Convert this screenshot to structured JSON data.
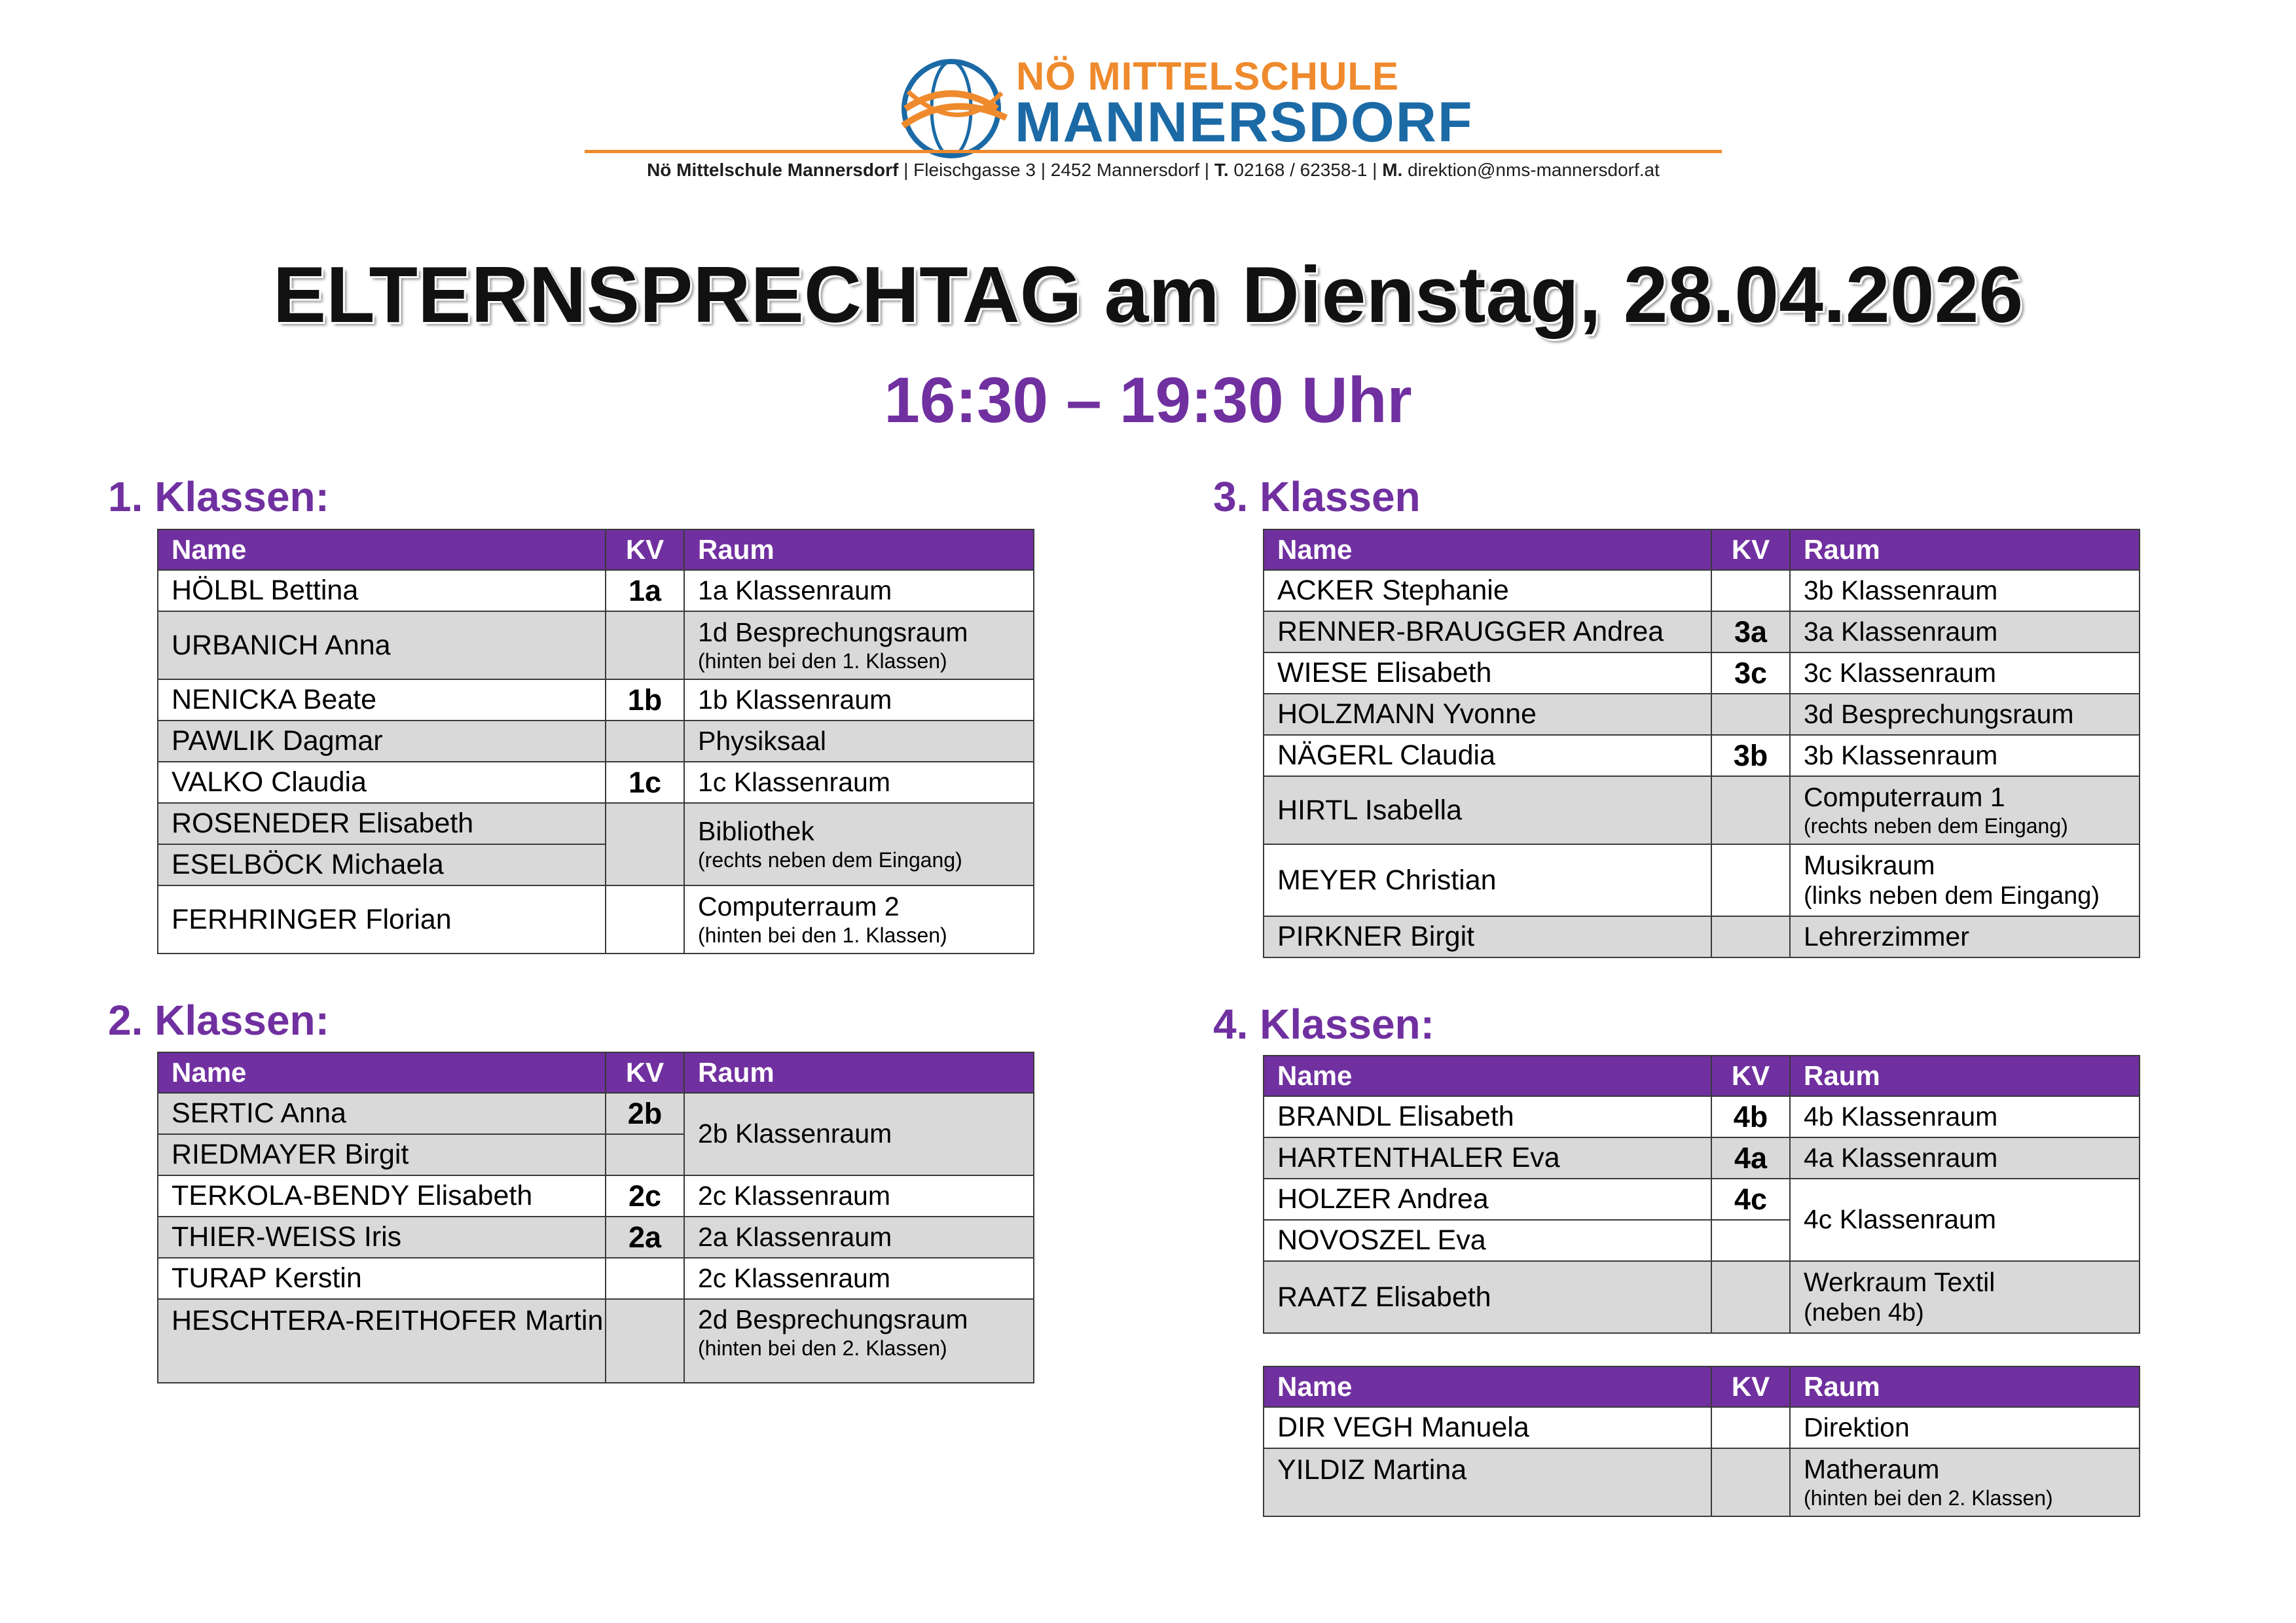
{
  "header": {
    "logo_line1": "NÖ MITTELSCHULE",
    "logo_line2": "MANNERSDORF",
    "address_school": "Nö Mittelschule Mannersdorf",
    "address_street": "| Fleischgasse 3 | 2452 Mannersdorf |",
    "address_t_label": "T.",
    "address_phone": "02168 / 62358-1 |",
    "address_m_label": "M.",
    "address_email": "direktion@nms-mannersdorf.at"
  },
  "title": "ELTERNSPRECHTAG am Dienstag, 28.04.2026",
  "time": "16:30 – 19:30 Uhr",
  "columns": {
    "name": "Name",
    "kv": "KV",
    "raum": "Raum"
  },
  "colors": {
    "accent": "#7030a0",
    "row_shade": "#d9d9d9",
    "logo_orange": "#ef8a2d",
    "logo_blue": "#1b6aa6"
  },
  "sections": {
    "k1": {
      "title": "1. Klassen:",
      "rows": [
        {
          "name": "HÖLBL Bettina",
          "kv": "1a",
          "raum": "1a Klassenraum",
          "note": ""
        },
        {
          "name": "URBANICH Anna",
          "kv": "",
          "raum": "1d Besprechungsraum",
          "note": "(hinten bei den 1. Klassen)"
        },
        {
          "name": "NENICKA Beate",
          "kv": "1b",
          "raum": "1b Klassenraum",
          "note": ""
        },
        {
          "name": "PAWLIK Dagmar",
          "kv": "",
          "raum": "Physiksaal",
          "note": ""
        },
        {
          "name": "VALKO Claudia",
          "kv": "1c",
          "raum": "1c Klassenraum",
          "note": ""
        },
        {
          "name": "ROSENEDER Elisabeth",
          "kv": "",
          "raum": "Bibliothek",
          "note": "(rechts neben dem Eingang)"
        },
        {
          "name": "ESELBÖCK Michaela",
          "kv": "",
          "raum": "",
          "note": ""
        },
        {
          "name": "FERHRINGER Florian",
          "kv": "",
          "raum": "Computerraum 2",
          "note": "(hinten bei den 1. Klassen)"
        }
      ]
    },
    "k2": {
      "title": "2. Klassen:",
      "rows": [
        {
          "name": "SERTIC Anna",
          "kv": "2b",
          "raum": "2b Klassenraum",
          "note": ""
        },
        {
          "name": "RIEDMAYER Birgit",
          "kv": "",
          "raum": "",
          "note": ""
        },
        {
          "name": "TERKOLA-BENDY Elisabeth",
          "kv": "2c",
          "raum": "2c Klassenraum",
          "note": ""
        },
        {
          "name": "THIER-WEISS Iris",
          "kv": "2a",
          "raum": "2a Klassenraum",
          "note": ""
        },
        {
          "name": "TURAP Kerstin",
          "kv": "",
          "raum": "2c Klassenraum",
          "note": ""
        },
        {
          "name": "HESCHTERA-REITHOFER Martin",
          "kv": "",
          "raum": "2d Besprechungsraum",
          "note": "(hinten bei den 2. Klassen)"
        }
      ]
    },
    "k3": {
      "title": "3. Klassen",
      "rows": [
        {
          "name": "ACKER Stephanie",
          "kv": "",
          "raum": "3b Klassenraum",
          "note": ""
        },
        {
          "name": "RENNER-BRAUGGER Andrea",
          "kv": "3a",
          "raum": "3a Klassenraum",
          "note": ""
        },
        {
          "name": "WIESE Elisabeth",
          "kv": "3c",
          "raum": "3c Klassenraum",
          "note": ""
        },
        {
          "name": "HOLZMANN Yvonne",
          "kv": "",
          "raum": "3d Besprechungsraum",
          "note": ""
        },
        {
          "name": "NÄGERL Claudia",
          "kv": "3b",
          "raum": "3b Klassenraum",
          "note": ""
        },
        {
          "name": "HIRTL Isabella",
          "kv": "",
          "raum": "Computerraum 1",
          "note": "(rechts neben dem Eingang)"
        },
        {
          "name": "MEYER Christian",
          "kv": "",
          "raum": "Musikraum",
          "note": "(links neben dem Eingang)"
        },
        {
          "name": "PIRKNER Birgit",
          "kv": "",
          "raum": "Lehrerzimmer",
          "note": ""
        }
      ]
    },
    "k4": {
      "title": "4. Klassen:",
      "rows": [
        {
          "name": "BRANDL Elisabeth",
          "kv": "4b",
          "raum": "4b Klassenraum",
          "note": ""
        },
        {
          "name": "HARTENTHALER Eva",
          "kv": "4a",
          "raum": "4a Klassenraum",
          "note": ""
        },
        {
          "name": "HOLZER Andrea",
          "kv": "4c",
          "raum": "4c Klassenraum",
          "note": ""
        },
        {
          "name": "NOVOSZEL Eva",
          "kv": "",
          "raum": "",
          "note": ""
        },
        {
          "name": "RAATZ Elisabeth",
          "kv": "",
          "raum": "Werkraum Textil",
          "note": "(neben 4b)"
        }
      ]
    },
    "other": {
      "rows": [
        {
          "name": "DIR VEGH Manuela",
          "kv": "",
          "raum": "Direktion",
          "note": ""
        },
        {
          "name": "YILDIZ Martina",
          "kv": "",
          "raum": "Matheraum",
          "note": "(hinten bei den 2. Klassen)"
        }
      ]
    }
  }
}
